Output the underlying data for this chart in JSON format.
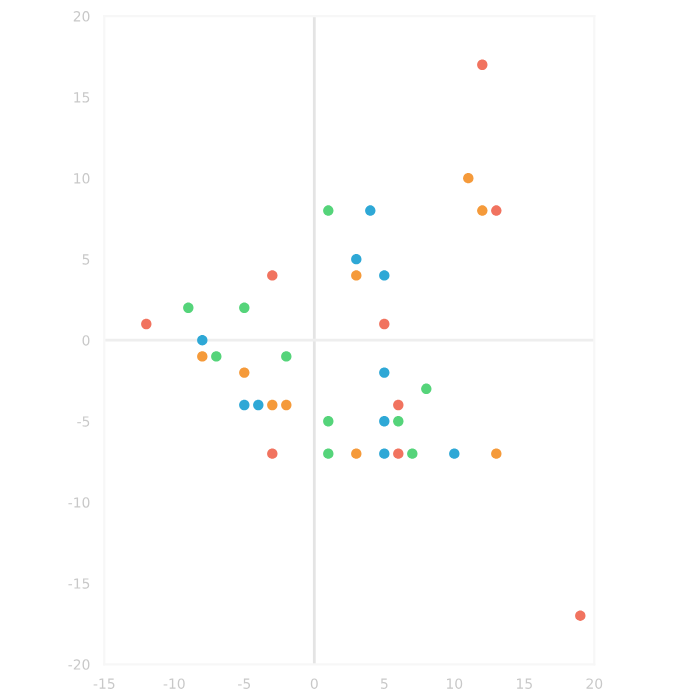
{
  "chart_data": {
    "type": "scatter",
    "xlim": [
      -15,
      20
    ],
    "ylim": [
      -20,
      20
    ],
    "xticks": [
      -15,
      -10,
      -5,
      0,
      5,
      10,
      15,
      20
    ],
    "yticks": [
      -20,
      -15,
      -10,
      -5,
      0,
      5,
      10,
      15,
      20
    ],
    "grid": false,
    "marker": "circle",
    "ref_lines": [
      {
        "axis": "x",
        "value": 0,
        "color": "#e4e4e4"
      },
      {
        "axis": "y",
        "value": 0,
        "color": "#eeeeee"
      }
    ],
    "series": [
      {
        "color": "#f1735f",
        "x": [
          -12,
          -3,
          12,
          5,
          13,
          -3,
          6,
          6,
          19
        ],
        "values": [
          1,
          4,
          17,
          1,
          8,
          -7,
          -4,
          -7,
          -17
        ]
      },
      {
        "color": "#f59a3a",
        "x": [
          3,
          11,
          12,
          -8,
          -5,
          -3,
          -2,
          3,
          13
        ],
        "values": [
          4,
          10,
          8,
          -1,
          -2,
          -4,
          -4,
          -7,
          -7
        ]
      },
      {
        "color": "#55d47a",
        "x": [
          -9,
          -5,
          1,
          -7,
          -2,
          1,
          1,
          8,
          6,
          7
        ],
        "values": [
          2,
          2,
          8,
          -1,
          -1,
          -5,
          -7,
          -3,
          -5,
          -7
        ]
      },
      {
        "color": "#2ea8d6",
        "x": [
          -8,
          4,
          3,
          5,
          -5,
          -4,
          5,
          5,
          10,
          5
        ],
        "values": [
          0,
          8,
          5,
          4,
          -4,
          -4,
          -2,
          -5,
          -7,
          -7
        ]
      }
    ]
  }
}
